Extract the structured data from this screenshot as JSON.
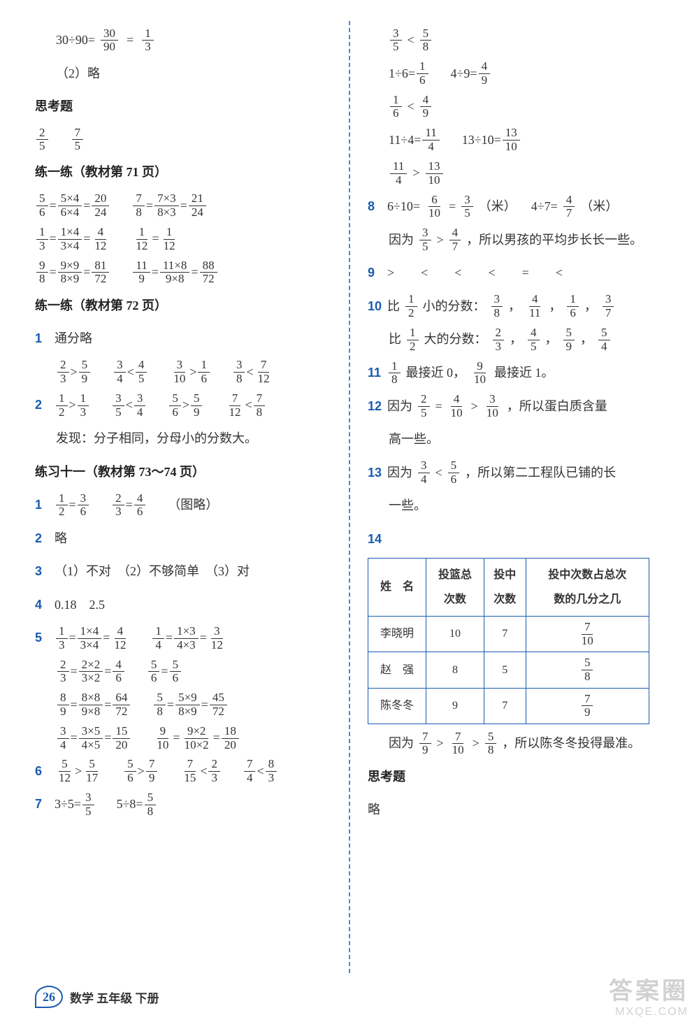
{
  "footer": {
    "page": "26",
    "text": "数学 五年级 下册"
  },
  "watermark": {
    "cn": "答案圈",
    "en": "MXQE.COM"
  },
  "left": {
    "l1_a": "30÷90=",
    "l1_f1_n": "30",
    "l1_f1_d": "90",
    "l1_eq": "=",
    "l1_f2_n": "1",
    "l1_f2_d": "3",
    "l2": "（2）略",
    "h1": "思考题",
    "l3_f1_n": "2",
    "l3_f1_d": "5",
    "l3_f2_n": "7",
    "l3_f2_d": "5",
    "h2": "练一练（教材第 71 页）",
    "l4a_f1_n": "5",
    "l4a_f1_d": "6",
    "l4a_f2_n": "5×4",
    "l4a_f2_d": "6×4",
    "l4a_f3_n": "20",
    "l4a_f3_d": "24",
    "l4b_f1_n": "7",
    "l4b_f1_d": "8",
    "l4b_f2_n": "7×3",
    "l4b_f2_d": "8×3",
    "l4b_f3_n": "21",
    "l4b_f3_d": "24",
    "l5a_f1_n": "1",
    "l5a_f1_d": "3",
    "l5a_f2_n": "1×4",
    "l5a_f2_d": "3×4",
    "l5a_f3_n": "4",
    "l5a_f3_d": "12",
    "l5b_f1_n": "1",
    "l5b_f1_d": "12",
    "l5b_f2_n": "1",
    "l5b_f2_d": "12",
    "l6a_f1_n": "9",
    "l6a_f1_d": "8",
    "l6a_f2_n": "9×9",
    "l6a_f2_d": "8×9",
    "l6a_f3_n": "81",
    "l6a_f3_d": "72",
    "l6b_f1_n": "11",
    "l6b_f1_d": "9",
    "l6b_f2_n": "11×8",
    "l6b_f2_d": "9×8",
    "l6b_f3_n": "88",
    "l6b_f3_d": "72",
    "h3": "练一练（教材第 72 页）",
    "q1": "通分略",
    "q1a_1_n": "2",
    "q1a_1_d": "3",
    "q1a_op": ">",
    "q1a_2_n": "5",
    "q1a_2_d": "9",
    "q1b_1_n": "3",
    "q1b_1_d": "4",
    "q1b_op": "<",
    "q1b_2_n": "4",
    "q1b_2_d": "5",
    "q1c_1_n": "3",
    "q1c_1_d": "10",
    "q1c_op": ">",
    "q1c_2_n": "1",
    "q1c_2_d": "6",
    "q1d_1_n": "3",
    "q1d_1_d": "8",
    "q1d_op": "<",
    "q1d_2_n": "7",
    "q1d_2_d": "12",
    "q2a_1_n": "1",
    "q2a_1_d": "2",
    "q2a_op": ">",
    "q2a_2_n": "1",
    "q2a_2_d": "3",
    "q2b_1_n": "3",
    "q2b_1_d": "5",
    "q2b_op": "<",
    "q2b_2_n": "3",
    "q2b_2_d": "4",
    "q2c_1_n": "5",
    "q2c_1_d": "6",
    "q2c_op": ">",
    "q2c_2_n": "5",
    "q2c_2_d": "9",
    "q2d_1_n": "7",
    "q2d_1_d": "12",
    "q2d_op": "<",
    "q2d_2_n": "7",
    "q2d_2_d": "8",
    "q2note": "发现：分子相同，分母小的分数大。",
    "h4": "练习十一（教材第 73～74 页）",
    "p1a_1_n": "1",
    "p1a_1_d": "2",
    "p1a_2_n": "3",
    "p1a_2_d": "6",
    "p1b_1_n": "2",
    "p1b_1_d": "3",
    "p1b_2_n": "4",
    "p1b_2_d": "6",
    "p1_rest": "（图略）",
    "p2": "略",
    "p3": "（1）不对　（2）不够简单　（3）对",
    "p4": "0.18　2.5",
    "p5a_1_n": "1",
    "p5a_1_d": "3",
    "p5a_2_n": "1×4",
    "p5a_2_d": "3×4",
    "p5a_3_n": "4",
    "p5a_3_d": "12",
    "p5b_1_n": "1",
    "p5b_1_d": "4",
    "p5b_2_n": "1×3",
    "p5b_2_d": "4×3",
    "p5b_3_n": "3",
    "p5b_3_d": "12",
    "p5c_1_n": "2",
    "p5c_1_d": "3",
    "p5c_2_n": "2×2",
    "p5c_2_d": "3×2",
    "p5c_3_n": "4",
    "p5c_3_d": "6",
    "p5d_1_n": "5",
    "p5d_1_d": "6",
    "p5d_2_n": "5",
    "p5d_2_d": "6",
    "p5e_1_n": "8",
    "p5e_1_d": "9",
    "p5e_2_n": "8×8",
    "p5e_2_d": "9×8",
    "p5e_3_n": "64",
    "p5e_3_d": "72",
    "p5f_1_n": "5",
    "p5f_1_d": "8",
    "p5f_2_n": "5×9",
    "p5f_2_d": "8×9",
    "p5f_3_n": "45",
    "p5f_3_d": "72",
    "p5g_1_n": "3",
    "p5g_1_d": "4",
    "p5g_2_n": "3×5",
    "p5g_2_d": "4×5",
    "p5g_3_n": "15",
    "p5g_3_d": "20",
    "p5h_1_n": "9",
    "p5h_1_d": "10",
    "p5h_2_n": "9×2",
    "p5h_2_d": "10×2",
    "p5h_3_n": "18",
    "p5h_3_d": "20",
    "p6a_1_n": "5",
    "p6a_1_d": "12",
    "p6a_op": ">",
    "p6a_2_n": "5",
    "p6a_2_d": "17",
    "p6b_1_n": "5",
    "p6b_1_d": "6",
    "p6b_op": ">",
    "p6b_2_n": "7",
    "p6b_2_d": "9",
    "p6c_1_n": "7",
    "p6c_1_d": "15",
    "p6c_op": "<",
    "p6c_2_n": "2",
    "p6c_2_d": "3",
    "p6d_1_n": "7",
    "p6d_1_d": "4",
    "p6d_op": "<",
    "p6d_2_n": "8",
    "p6d_2_d": "3",
    "p7a_t": "3÷5=",
    "p7a_n": "3",
    "p7a_d": "5",
    "p7b_t": "5÷8=",
    "p7b_n": "5",
    "p7b_d": "8"
  },
  "right": {
    "r1_1_n": "3",
    "r1_1_d": "5",
    "r1_op": "<",
    "r1_2_n": "5",
    "r1_2_d": "8",
    "r2a_t": "1÷6=",
    "r2a_n": "1",
    "r2a_d": "6",
    "r2b_t": "4÷9=",
    "r2b_n": "4",
    "r2b_d": "9",
    "r3_1_n": "1",
    "r3_1_d": "6",
    "r3_op": "<",
    "r3_2_n": "4",
    "r3_2_d": "9",
    "r4a_t": "11÷4=",
    "r4a_n": "11",
    "r4a_d": "4",
    "r4b_t": "13÷10=",
    "r4b_n": "13",
    "r4b_d": "10",
    "r5_1_n": "11",
    "r5_1_d": "4",
    "r5_op": ">",
    "r5_2_n": "13",
    "r5_2_d": "10",
    "q8a_t": "6÷10=",
    "q8a_1_n": "6",
    "q8a_1_d": "10",
    "q8a_2_n": "3",
    "q8a_2_d": "5",
    "q8a_u": "（米）",
    "q8b_t": "4÷7=",
    "q8b_n": "4",
    "q8b_d": "7",
    "q8b_u": "（米）",
    "q8c_pre": "因为",
    "q8c_1_n": "3",
    "q8c_1_d": "5",
    "q8c_op": ">",
    "q8c_2_n": "4",
    "q8c_2_d": "7",
    "q8c_post": "，所以男孩的平均步长长一些。",
    "q9": ">　<　<　<　=　<",
    "q10a_pre": "比",
    "q10a_fn": "1",
    "q10a_fd": "2",
    "q10a_mid": "小的分数：",
    "q10a_1_n": "3",
    "q10a_1_d": "8",
    "q10a_2_n": "4",
    "q10a_2_d": "11",
    "q10a_3_n": "1",
    "q10a_3_d": "6",
    "q10a_4_n": "3",
    "q10a_4_d": "7",
    "q10b_pre": "比",
    "q10b_fn": "1",
    "q10b_fd": "2",
    "q10b_mid": "大的分数：",
    "q10b_1_n": "2",
    "q10b_1_d": "3",
    "q10b_2_n": "4",
    "q10b_2_d": "5",
    "q10b_3_n": "5",
    "q10b_3_d": "9",
    "q10b_4_n": "5",
    "q10b_4_d": "4",
    "q11_1_n": "1",
    "q11_1_d": "8",
    "q11_mid1": "最接近 0，",
    "q11_2_n": "9",
    "q11_2_d": "10",
    "q11_mid2": "最接近 1。",
    "q12_pre": "因为",
    "q12_1_n": "2",
    "q12_1_d": "5",
    "q12_eq": "=",
    "q12_2_n": "4",
    "q12_2_d": "10",
    "q12_op": ">",
    "q12_3_n": "3",
    "q12_3_d": "10",
    "q12_post": "，所以蛋白质含量",
    "q12_post2": "高一些。",
    "q13_pre": "因为",
    "q13_1_n": "3",
    "q13_1_d": "4",
    "q13_op": "<",
    "q13_2_n": "5",
    "q13_2_d": "6",
    "q13_post": "，所以第二工程队已铺的长",
    "q13_post2": "一些。",
    "table": {
      "h1": "姓　名",
      "h2": "投篮总\n次数",
      "h3": "投中\n次数",
      "h4": "投中次数占总次\n数的几分之几",
      "r1_name": "李晓明",
      "r1_a": "10",
      "r1_b": "7",
      "r1_fn": "7",
      "r1_fd": "10",
      "r2_name": "赵　强",
      "r2_a": "8",
      "r2_b": "5",
      "r2_fn": "5",
      "r2_fd": "8",
      "r3_name": "陈冬冬",
      "r3_a": "9",
      "r3_b": "7",
      "r3_fn": "7",
      "r3_fd": "9"
    },
    "q14_pre": "因为",
    "q14_1_n": "7",
    "q14_1_d": "9",
    "q14_2_n": "7",
    "q14_2_d": "10",
    "q14_3_n": "5",
    "q14_3_d": "8",
    "q14_post": "，所以陈冬冬投得最准。",
    "h5": "思考题",
    "r_end": "略"
  }
}
